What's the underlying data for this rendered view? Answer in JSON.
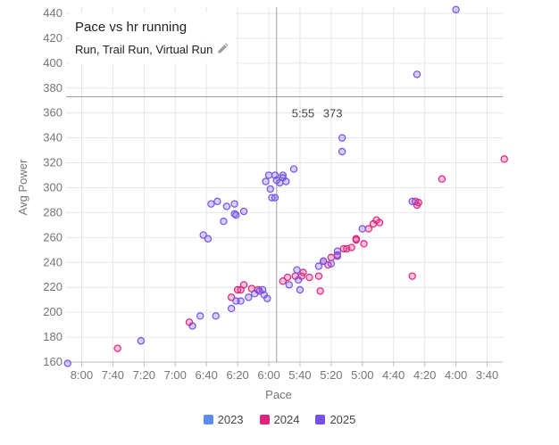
{
  "chart_data": {
    "type": "scatter",
    "title": "Pace vs hr running",
    "subtitle": "Run, Trail Run, Virtual Run",
    "xlabel": "Pace",
    "ylabel": "Avg Power",
    "x_unit": "seconds per km (axis reversed, shown as m:ss)",
    "xlim": [
      490,
      210
    ],
    "ylim": [
      160,
      445
    ],
    "x_ticks": [
      "8:00",
      "7:40",
      "7:20",
      "7:00",
      "6:40",
      "6:20",
      "6:00",
      "5:40",
      "5:20",
      "5:00",
      "4:40",
      "4:20",
      "4:00",
      "3:40"
    ],
    "y_ticks": [
      160,
      180,
      200,
      220,
      240,
      260,
      280,
      300,
      320,
      340,
      360,
      380,
      400,
      420,
      440
    ],
    "grid": true,
    "crosshair": {
      "x": 355,
      "y": 373,
      "x_label": "5:55",
      "y_label": "373"
    },
    "legend_position": "bottom",
    "series": [
      {
        "name": "2023",
        "color": "#5b8def",
        "points": []
      },
      {
        "name": "2024",
        "color": "#e0237c",
        "points": [
          [
            457,
            171
          ],
          [
            411,
            192
          ],
          [
            384,
            212
          ],
          [
            380,
            218
          ],
          [
            378,
            218
          ],
          [
            376,
            222
          ],
          [
            371,
            219
          ],
          [
            367,
            218
          ],
          [
            351,
            225
          ],
          [
            348,
            228
          ],
          [
            343,
            229
          ],
          [
            339,
            229
          ],
          [
            338,
            232
          ],
          [
            334,
            228
          ],
          [
            328,
            229
          ],
          [
            327,
            217
          ],
          [
            325,
            241
          ],
          [
            322,
            238
          ],
          [
            320,
            244
          ],
          [
            316,
            246
          ],
          [
            312,
            251
          ],
          [
            310,
            251
          ],
          [
            307,
            252
          ],
          [
            304,
            258
          ],
          [
            304,
            259
          ],
          [
            299,
            255
          ],
          [
            296,
            267
          ],
          [
            293,
            271
          ],
          [
            291,
            274
          ],
          [
            289,
            272
          ],
          [
            268,
            229
          ],
          [
            266,
            289
          ],
          [
            265,
            286
          ],
          [
            264,
            288
          ],
          [
            249,
            307
          ],
          [
            209,
            323
          ]
        ]
      },
      {
        "name": "2025",
        "color": "#7452e8",
        "points": [
          [
            489,
            159
          ],
          [
            442,
            177
          ],
          [
            409,
            189
          ],
          [
            404,
            197
          ],
          [
            402,
            262
          ],
          [
            399,
            259
          ],
          [
            394,
            197
          ],
          [
            397,
            287
          ],
          [
            393,
            289
          ],
          [
            389,
            273
          ],
          [
            387,
            285
          ],
          [
            384,
            203
          ],
          [
            382,
            279
          ],
          [
            382,
            287
          ],
          [
            381,
            278
          ],
          [
            381,
            209
          ],
          [
            378,
            209
          ],
          [
            376,
            281
          ],
          [
            373,
            212
          ],
          [
            369,
            215
          ],
          [
            366,
            217
          ],
          [
            364,
            218
          ],
          [
            363,
            214
          ],
          [
            361,
            211
          ],
          [
            362,
            305
          ],
          [
            360,
            310
          ],
          [
            359,
            299
          ],
          [
            358,
            292
          ],
          [
            356,
            292
          ],
          [
            356,
            310
          ],
          [
            355,
            306
          ],
          [
            353,
            304
          ],
          [
            351,
            308
          ],
          [
            351,
            310
          ],
          [
            349,
            305
          ],
          [
            347,
            222
          ],
          [
            344,
            315
          ],
          [
            342,
            234
          ],
          [
            341,
            226
          ],
          [
            340,
            218
          ],
          [
            328,
            237
          ],
          [
            325,
            241
          ],
          [
            320,
            239
          ],
          [
            316,
            249
          ],
          [
            316,
            245
          ],
          [
            313,
            340
          ],
          [
            313,
            329
          ],
          [
            300,
            267
          ],
          [
            268,
            289
          ],
          [
            265,
            391
          ],
          [
            240,
            443
          ]
        ]
      }
    ]
  }
}
